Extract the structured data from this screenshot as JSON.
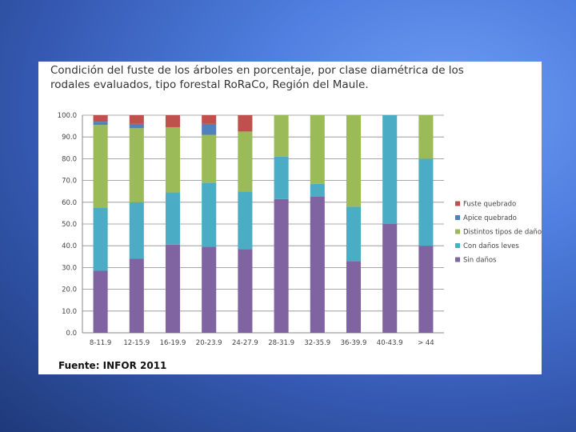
{
  "chart_data": {
    "type": "bar",
    "stacked": true,
    "title": "Condición del fuste de los árboles en porcentaje, por clase diamétrica de los rodales evaluados, tipo forestal RoRaCo, Región del Maule.",
    "source": "Fuente: INFOR 2011",
    "categories": [
      "8-11.9",
      "12-15.9",
      "16-19.9",
      "20-23.9",
      "24-27.9",
      "28-31.9",
      "32-35.9",
      "36-39.9",
      "40-43.9",
      "> 44"
    ],
    "y_ticks": [
      "0.0",
      "10.0",
      "20.0",
      "30.0",
      "40.0",
      "50.0",
      "60.0",
      "70.0",
      "80.0",
      "90.0",
      "100.0"
    ],
    "ylim": [
      0,
      100
    ],
    "grid": true,
    "legend_position": "right",
    "series": [
      {
        "name": "Sin daños",
        "color": "#8064a2",
        "values": [
          28.5,
          34,
          40.5,
          39.5,
          38.5,
          61.5,
          62.5,
          33,
          50,
          40
        ]
      },
      {
        "name": "Con daños leves",
        "color": "#4bacc6",
        "values": [
          29,
          26,
          24,
          29.5,
          26.5,
          19.5,
          6,
          25,
          50,
          40
        ]
      },
      {
        "name": "Distintos tipos de daño",
        "color": "#9bbb59",
        "values": [
          38,
          34,
          30,
          22,
          27.5,
          19,
          31.5,
          42,
          0,
          20
        ]
      },
      {
        "name": "Apice quebrado",
        "color": "#4f81bd",
        "values": [
          1.5,
          2,
          0,
          5,
          0,
          0,
          0,
          0,
          0,
          0
        ]
      },
      {
        "name": "Fuste quebrado",
        "color": "#c0504d",
        "values": [
          3,
          4,
          5.5,
          4,
          7.5,
          0,
          0,
          0,
          0,
          0
        ]
      }
    ],
    "legend_order": [
      "Fuste quebrado",
      "Apice quebrado",
      "Distintos tipos de daño",
      "Con daños leves",
      "Sin daños"
    ]
  }
}
